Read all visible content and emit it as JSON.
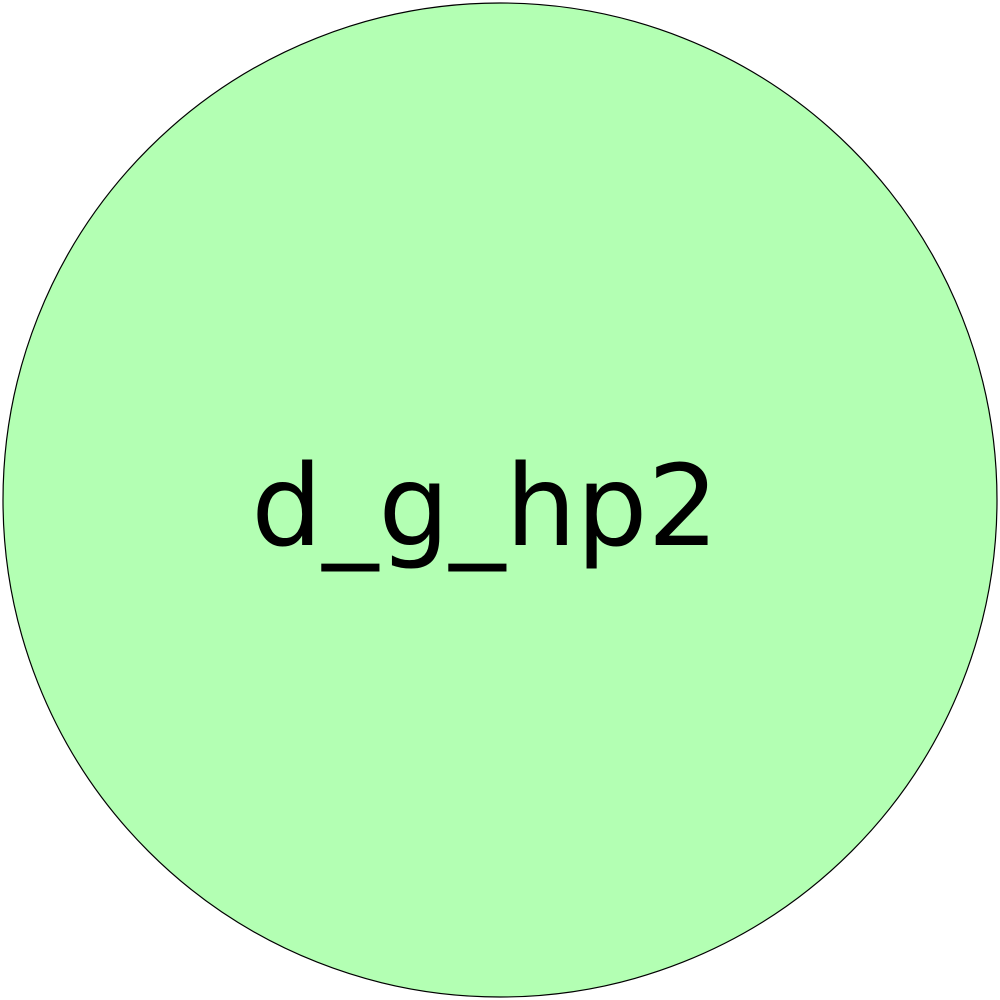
{
  "diagram": {
    "nodes": [
      {
        "id": "node-1",
        "label": "d_g_hp2",
        "shape": "circle",
        "fill": "#b3ffb3",
        "stroke": "#000000"
      }
    ]
  }
}
